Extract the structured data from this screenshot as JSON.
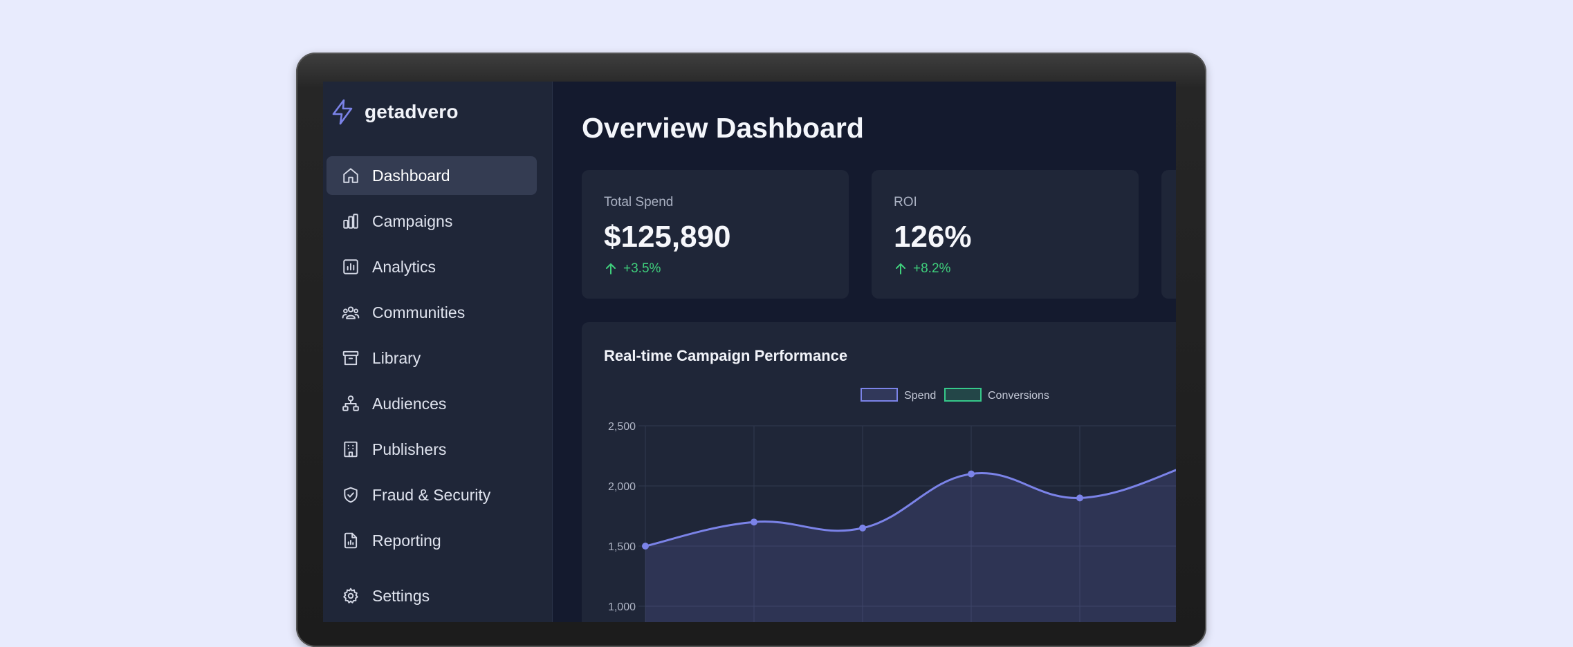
{
  "brand": {
    "name": "getadvero"
  },
  "sidebar": {
    "items": [
      {
        "label": "Dashboard",
        "icon": "home-icon",
        "active": true
      },
      {
        "label": "Campaigns",
        "icon": "bar-chart-icon"
      },
      {
        "label": "Analytics",
        "icon": "analytics-icon"
      },
      {
        "label": "Communities",
        "icon": "users-group-icon"
      },
      {
        "label": "Library",
        "icon": "archive-icon"
      },
      {
        "label": "Audiences",
        "icon": "network-icon"
      },
      {
        "label": "Publishers",
        "icon": "building-icon"
      },
      {
        "label": "Fraud & Security",
        "icon": "shield-icon"
      },
      {
        "label": "Reporting",
        "icon": "document-chart-icon"
      },
      {
        "label": "Settings",
        "icon": "gear-icon"
      }
    ]
  },
  "main": {
    "title": "Overview Dashboard",
    "stats": [
      {
        "label": "Total Spend",
        "value": "$125,890",
        "change": "+3.5%"
      },
      {
        "label": "ROI",
        "value": "126%",
        "change": "+8.2%"
      }
    ]
  },
  "chart_data": {
    "type": "line",
    "title": "Real-time Campaign Performance",
    "series": [
      {
        "name": "Spend",
        "color": "#7b83e8",
        "values": [
          1500,
          1700,
          1650,
          2100,
          1900,
          2170
        ]
      },
      {
        "name": "Conversions",
        "color": "#36c98a",
        "values": []
      }
    ],
    "y_ticks": [
      "2,500",
      "2,000",
      "1,500",
      "1,000"
    ],
    "ylim": [
      1000,
      2500
    ],
    "grid": true,
    "legend": "top-center"
  },
  "colors": {
    "background": "#e8ebfd",
    "sidebar": "#1f2638",
    "main": "#141a2e",
    "card": "#1f2638",
    "positive": "#3fcf7c"
  }
}
